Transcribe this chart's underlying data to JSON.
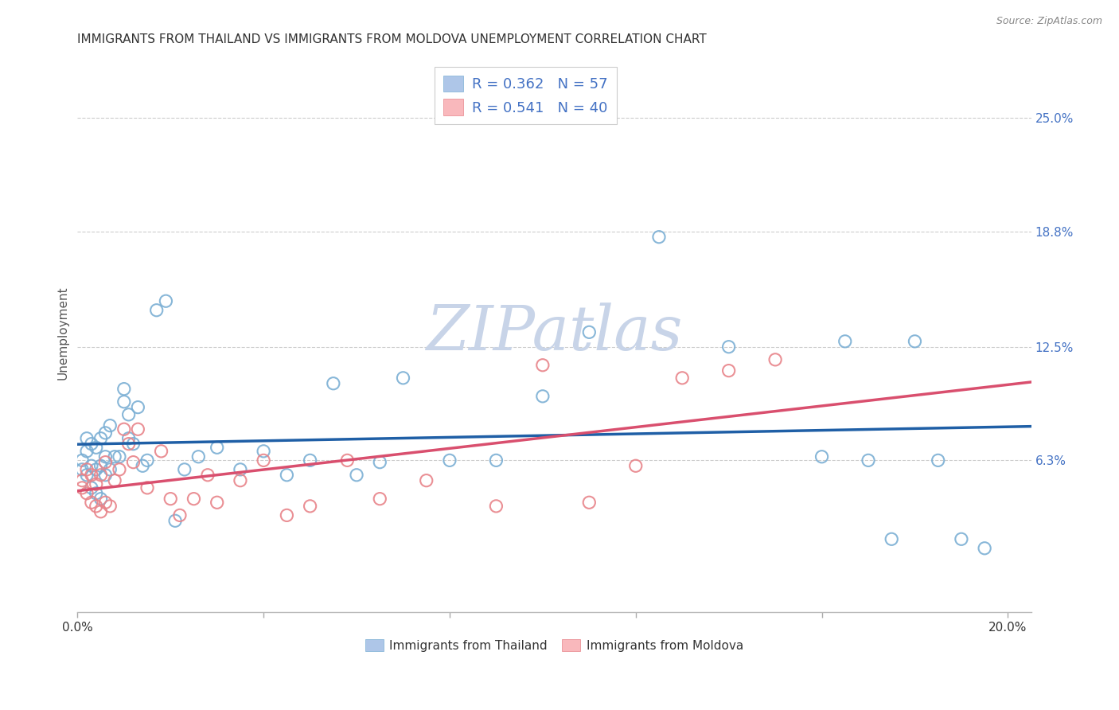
{
  "title": "IMMIGRANTS FROM THAILAND VS IMMIGRANTS FROM MOLDOVA UNEMPLOYMENT CORRELATION CHART",
  "source": "Source: ZipAtlas.com",
  "ylabel": "Unemployment",
  "xlim": [
    0.0,
    0.205
  ],
  "ylim": [
    -0.02,
    0.285
  ],
  "yticks": [
    0.063,
    0.125,
    0.188,
    0.25
  ],
  "ytick_labels": [
    "6.3%",
    "12.5%",
    "18.8%",
    "25.0%"
  ],
  "xtick_positions": [
    0.0,
    0.04,
    0.08,
    0.12,
    0.16,
    0.2
  ],
  "xtick_labels": [
    "0.0%",
    "",
    "",
    "",
    "",
    "20.0%"
  ],
  "thailand_color": "#aec6e8",
  "thailand_edge": "#7bafd4",
  "moldova_color": "#f9b8bc",
  "moldova_edge": "#e8848a",
  "trend_blue": "#1f5fa6",
  "trend_pink": "#d94f6e",
  "background_color": "#ffffff",
  "grid_color": "#cccccc",
  "watermark": "ZIPatlas",
  "watermark_color": "#c8d4e8",
  "legend_text_color": "#4472c4",
  "thailand_R": "0.362",
  "thailand_N": "57",
  "moldova_R": "0.541",
  "moldova_N": "40",
  "thailand_x": [
    0.001,
    0.001,
    0.002,
    0.002,
    0.002,
    0.003,
    0.003,
    0.003,
    0.004,
    0.004,
    0.004,
    0.005,
    0.005,
    0.005,
    0.006,
    0.006,
    0.006,
    0.007,
    0.007,
    0.008,
    0.009,
    0.01,
    0.01,
    0.011,
    0.011,
    0.012,
    0.013,
    0.014,
    0.015,
    0.017,
    0.019,
    0.021,
    0.023,
    0.026,
    0.03,
    0.035,
    0.04,
    0.045,
    0.05,
    0.055,
    0.06,
    0.065,
    0.07,
    0.08,
    0.09,
    0.1,
    0.11,
    0.125,
    0.14,
    0.16,
    0.165,
    0.17,
    0.175,
    0.18,
    0.185,
    0.19,
    0.195
  ],
  "thailand_y": [
    0.063,
    0.058,
    0.055,
    0.068,
    0.075,
    0.048,
    0.06,
    0.072,
    0.045,
    0.058,
    0.07,
    0.042,
    0.06,
    0.075,
    0.055,
    0.065,
    0.078,
    0.058,
    0.082,
    0.065,
    0.065,
    0.095,
    0.102,
    0.075,
    0.088,
    0.072,
    0.092,
    0.06,
    0.063,
    0.145,
    0.15,
    0.03,
    0.058,
    0.065,
    0.07,
    0.058,
    0.068,
    0.055,
    0.063,
    0.105,
    0.055,
    0.062,
    0.108,
    0.063,
    0.063,
    0.098,
    0.133,
    0.185,
    0.125,
    0.065,
    0.128,
    0.063,
    0.02,
    0.128,
    0.063,
    0.02,
    0.015
  ],
  "moldova_x": [
    0.001,
    0.001,
    0.002,
    0.002,
    0.003,
    0.003,
    0.004,
    0.004,
    0.005,
    0.005,
    0.006,
    0.006,
    0.007,
    0.008,
    0.009,
    0.01,
    0.011,
    0.012,
    0.013,
    0.015,
    0.018,
    0.02,
    0.022,
    0.025,
    0.028,
    0.03,
    0.035,
    0.04,
    0.045,
    0.05,
    0.058,
    0.065,
    0.075,
    0.09,
    0.1,
    0.11,
    0.12,
    0.13,
    0.14,
    0.15
  ],
  "moldova_y": [
    0.052,
    0.048,
    0.045,
    0.058,
    0.04,
    0.055,
    0.038,
    0.05,
    0.035,
    0.055,
    0.04,
    0.062,
    0.038,
    0.052,
    0.058,
    0.08,
    0.072,
    0.062,
    0.08,
    0.048,
    0.068,
    0.042,
    0.033,
    0.042,
    0.055,
    0.04,
    0.052,
    0.063,
    0.033,
    0.038,
    0.063,
    0.042,
    0.052,
    0.038,
    0.115,
    0.04,
    0.06,
    0.108,
    0.112,
    0.118
  ]
}
